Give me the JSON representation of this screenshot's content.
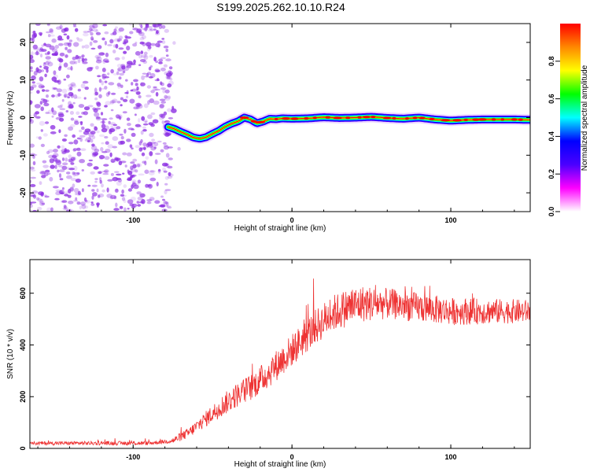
{
  "title": "S199.2025.262.10.10.R24",
  "colors": {
    "plot_bg": "#ffffff",
    "axis": "#000000",
    "line": "#ee3333",
    "noise": "#8a2be2",
    "colorscale": [
      "#ffffff",
      "#ff00ff",
      "#4b00ff",
      "#0000ff",
      "#00ffff",
      "#00ff00",
      "#ffff00",
      "#ff8800",
      "#ff0000",
      "#ff1166"
    ]
  },
  "chart_data": [
    {
      "type": "heatmap",
      "title": "",
      "xlabel": "Height of straight line (km)",
      "ylabel": "Frequency (Hz)",
      "xlim": [
        -165,
        150
      ],
      "ylim": [
        -25,
        25
      ],
      "xticks": [
        -100,
        0,
        100
      ],
      "yticks": [
        -20,
        -10,
        0,
        10,
        20
      ],
      "noise_region": [
        -165,
        -76
      ],
      "ridge": {
        "x": [
          -78,
          -74,
          -70,
          -66,
          -62,
          -58,
          -54,
          -50,
          -46,
          -42,
          -38,
          -34,
          -30,
          -26,
          -22,
          -18,
          -14,
          -10,
          -6,
          0,
          10,
          20,
          30,
          40,
          50,
          60,
          70,
          80,
          90,
          100,
          110,
          120,
          130,
          140,
          150
        ],
        "y": [
          -2.5,
          -3.0,
          -3.8,
          -4.5,
          -5.3,
          -5.6,
          -5.2,
          -4.3,
          -3.5,
          -2.4,
          -1.6,
          -1.0,
          0.0,
          -0.5,
          -1.5,
          -1.0,
          -0.3,
          -0.4,
          -0.2,
          -0.3,
          -0.2,
          0.1,
          -0.1,
          0.0,
          0.2,
          -0.1,
          -0.3,
          0.0,
          -0.5,
          -0.8,
          -0.6,
          -0.5,
          -0.5,
          -0.5,
          -0.6
        ]
      },
      "colorbar": {
        "label": "Normalized spectral amplitude",
        "range": [
          0,
          1
        ],
        "ticks": [
          "0.0",
          "0.2",
          "0.4",
          "0.6",
          "0.8"
        ]
      }
    },
    {
      "type": "line",
      "title": "",
      "xlabel": "Height of straight line (km)",
      "ylabel": "SNR (10 * v/v)",
      "xlim": [
        -165,
        150
      ],
      "ylim": [
        0,
        730
      ],
      "xticks": [
        -100,
        0,
        100
      ],
      "yticks": [
        0,
        200,
        400,
        600
      ],
      "trend": {
        "x": [
          -165,
          -120,
          -90,
          -75,
          -65,
          -55,
          -45,
          -35,
          -25,
          -15,
          -5,
          5,
          15,
          25,
          35,
          45,
          60,
          80,
          100,
          120,
          150
        ],
        "y": [
          20,
          20,
          20,
          30,
          60,
          110,
          160,
          205,
          240,
          290,
          350,
          410,
          470,
          520,
          545,
          560,
          560,
          545,
          530,
          530,
          530
        ]
      },
      "noise_amplitude": {
        "x": [
          -165,
          -80,
          -60,
          -40,
          -10,
          20,
          40,
          60,
          150
        ],
        "y": [
          7,
          8,
          25,
          45,
          60,
          70,
          75,
          60,
          45
        ]
      }
    }
  ]
}
